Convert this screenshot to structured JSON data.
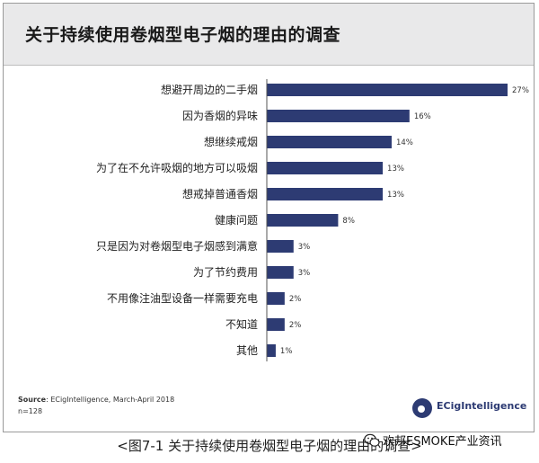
{
  "title": "关于持续使用卷烟型电子烟的理由的调查",
  "source_label": "Source",
  "source_text": ": ECigIntelligence, March-April 2018",
  "sample_size": "n=128",
  "logo": {
    "name": "ECigIntelligence",
    "icon": "ecig-logo-icon"
  },
  "caption": "<图7-1 关于持续使用卷烟型电子烟的理由的调查>",
  "watermark": {
    "icon": "wechat-icon",
    "text": "欢邦ESMOKE产业资讯"
  },
  "colors": {
    "bar": "#2d3b73",
    "titlebar": "#e9e9ea"
  },
  "chart_data": {
    "type": "bar",
    "orientation": "horizontal",
    "title": "关于持续使用卷烟型电子烟的理由的调查",
    "categories": [
      "想避开周边的二手烟",
      "因为香烟的异味",
      "想继续戒烟",
      "为了在不允许吸烟的地方可以吸烟",
      "想戒掉普通香烟",
      "健康问题",
      "只是因为对卷烟型电子烟感到满意",
      "为了节约费用",
      "不用像注油型设备一样需要充电",
      "不知道",
      "其他"
    ],
    "values": [
      27,
      16,
      14,
      13,
      13,
      8,
      3,
      3,
      2,
      2,
      1
    ],
    "value_labels": [
      "27%",
      "16%",
      "14%",
      "13%",
      "13%",
      "8%",
      "3%",
      "3%",
      "2%",
      "2%",
      "1%"
    ],
    "unit": "%",
    "xlim": [
      0,
      27
    ],
    "grid": false,
    "legend": "none"
  }
}
